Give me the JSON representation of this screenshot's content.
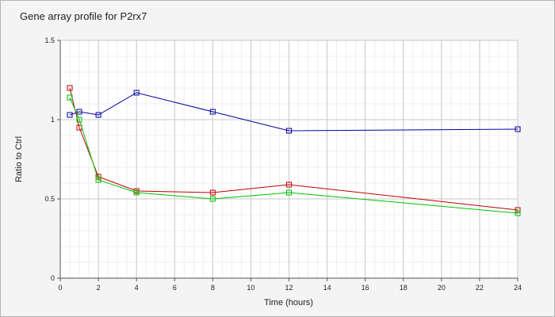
{
  "chart_data": {
    "type": "line",
    "title": "Gene array profile for P2rx7",
    "xlabel": "Time (hours)",
    "ylabel": "Ratio to Ctrl",
    "xlim": [
      0,
      24
    ],
    "ylim": [
      0,
      1.5
    ],
    "x_ticks": [
      "0",
      "2",
      "4",
      "6",
      "8",
      "10",
      "12",
      "14",
      "16",
      "18",
      "20",
      "22",
      "24"
    ],
    "y_ticks": [
      "0",
      "0.5",
      "1",
      "1.5"
    ],
    "grid": true,
    "legend": "none",
    "series": [
      {
        "color": "#0000a0",
        "marker": "square",
        "points": [
          [
            0.5,
            1.03
          ],
          [
            1,
            1.05
          ],
          [
            2,
            1.03
          ],
          [
            4,
            1.17
          ],
          [
            8,
            1.05
          ],
          [
            12,
            0.93
          ],
          [
            24,
            0.94
          ]
        ]
      },
      {
        "color": "#c00000",
        "marker": "square",
        "points": [
          [
            0.5,
            1.2
          ],
          [
            1,
            0.95
          ],
          [
            2,
            0.64
          ],
          [
            4,
            0.55
          ],
          [
            8,
            0.54
          ],
          [
            12,
            0.59
          ],
          [
            24,
            0.43
          ]
        ]
      },
      {
        "color": "#00c000",
        "marker": "square",
        "points": [
          [
            0.5,
            1.14
          ],
          [
            1,
            1.0
          ],
          [
            2,
            0.62
          ],
          [
            4,
            0.54
          ],
          [
            8,
            0.5
          ],
          [
            12,
            0.54
          ],
          [
            24,
            0.41
          ]
        ]
      }
    ]
  }
}
